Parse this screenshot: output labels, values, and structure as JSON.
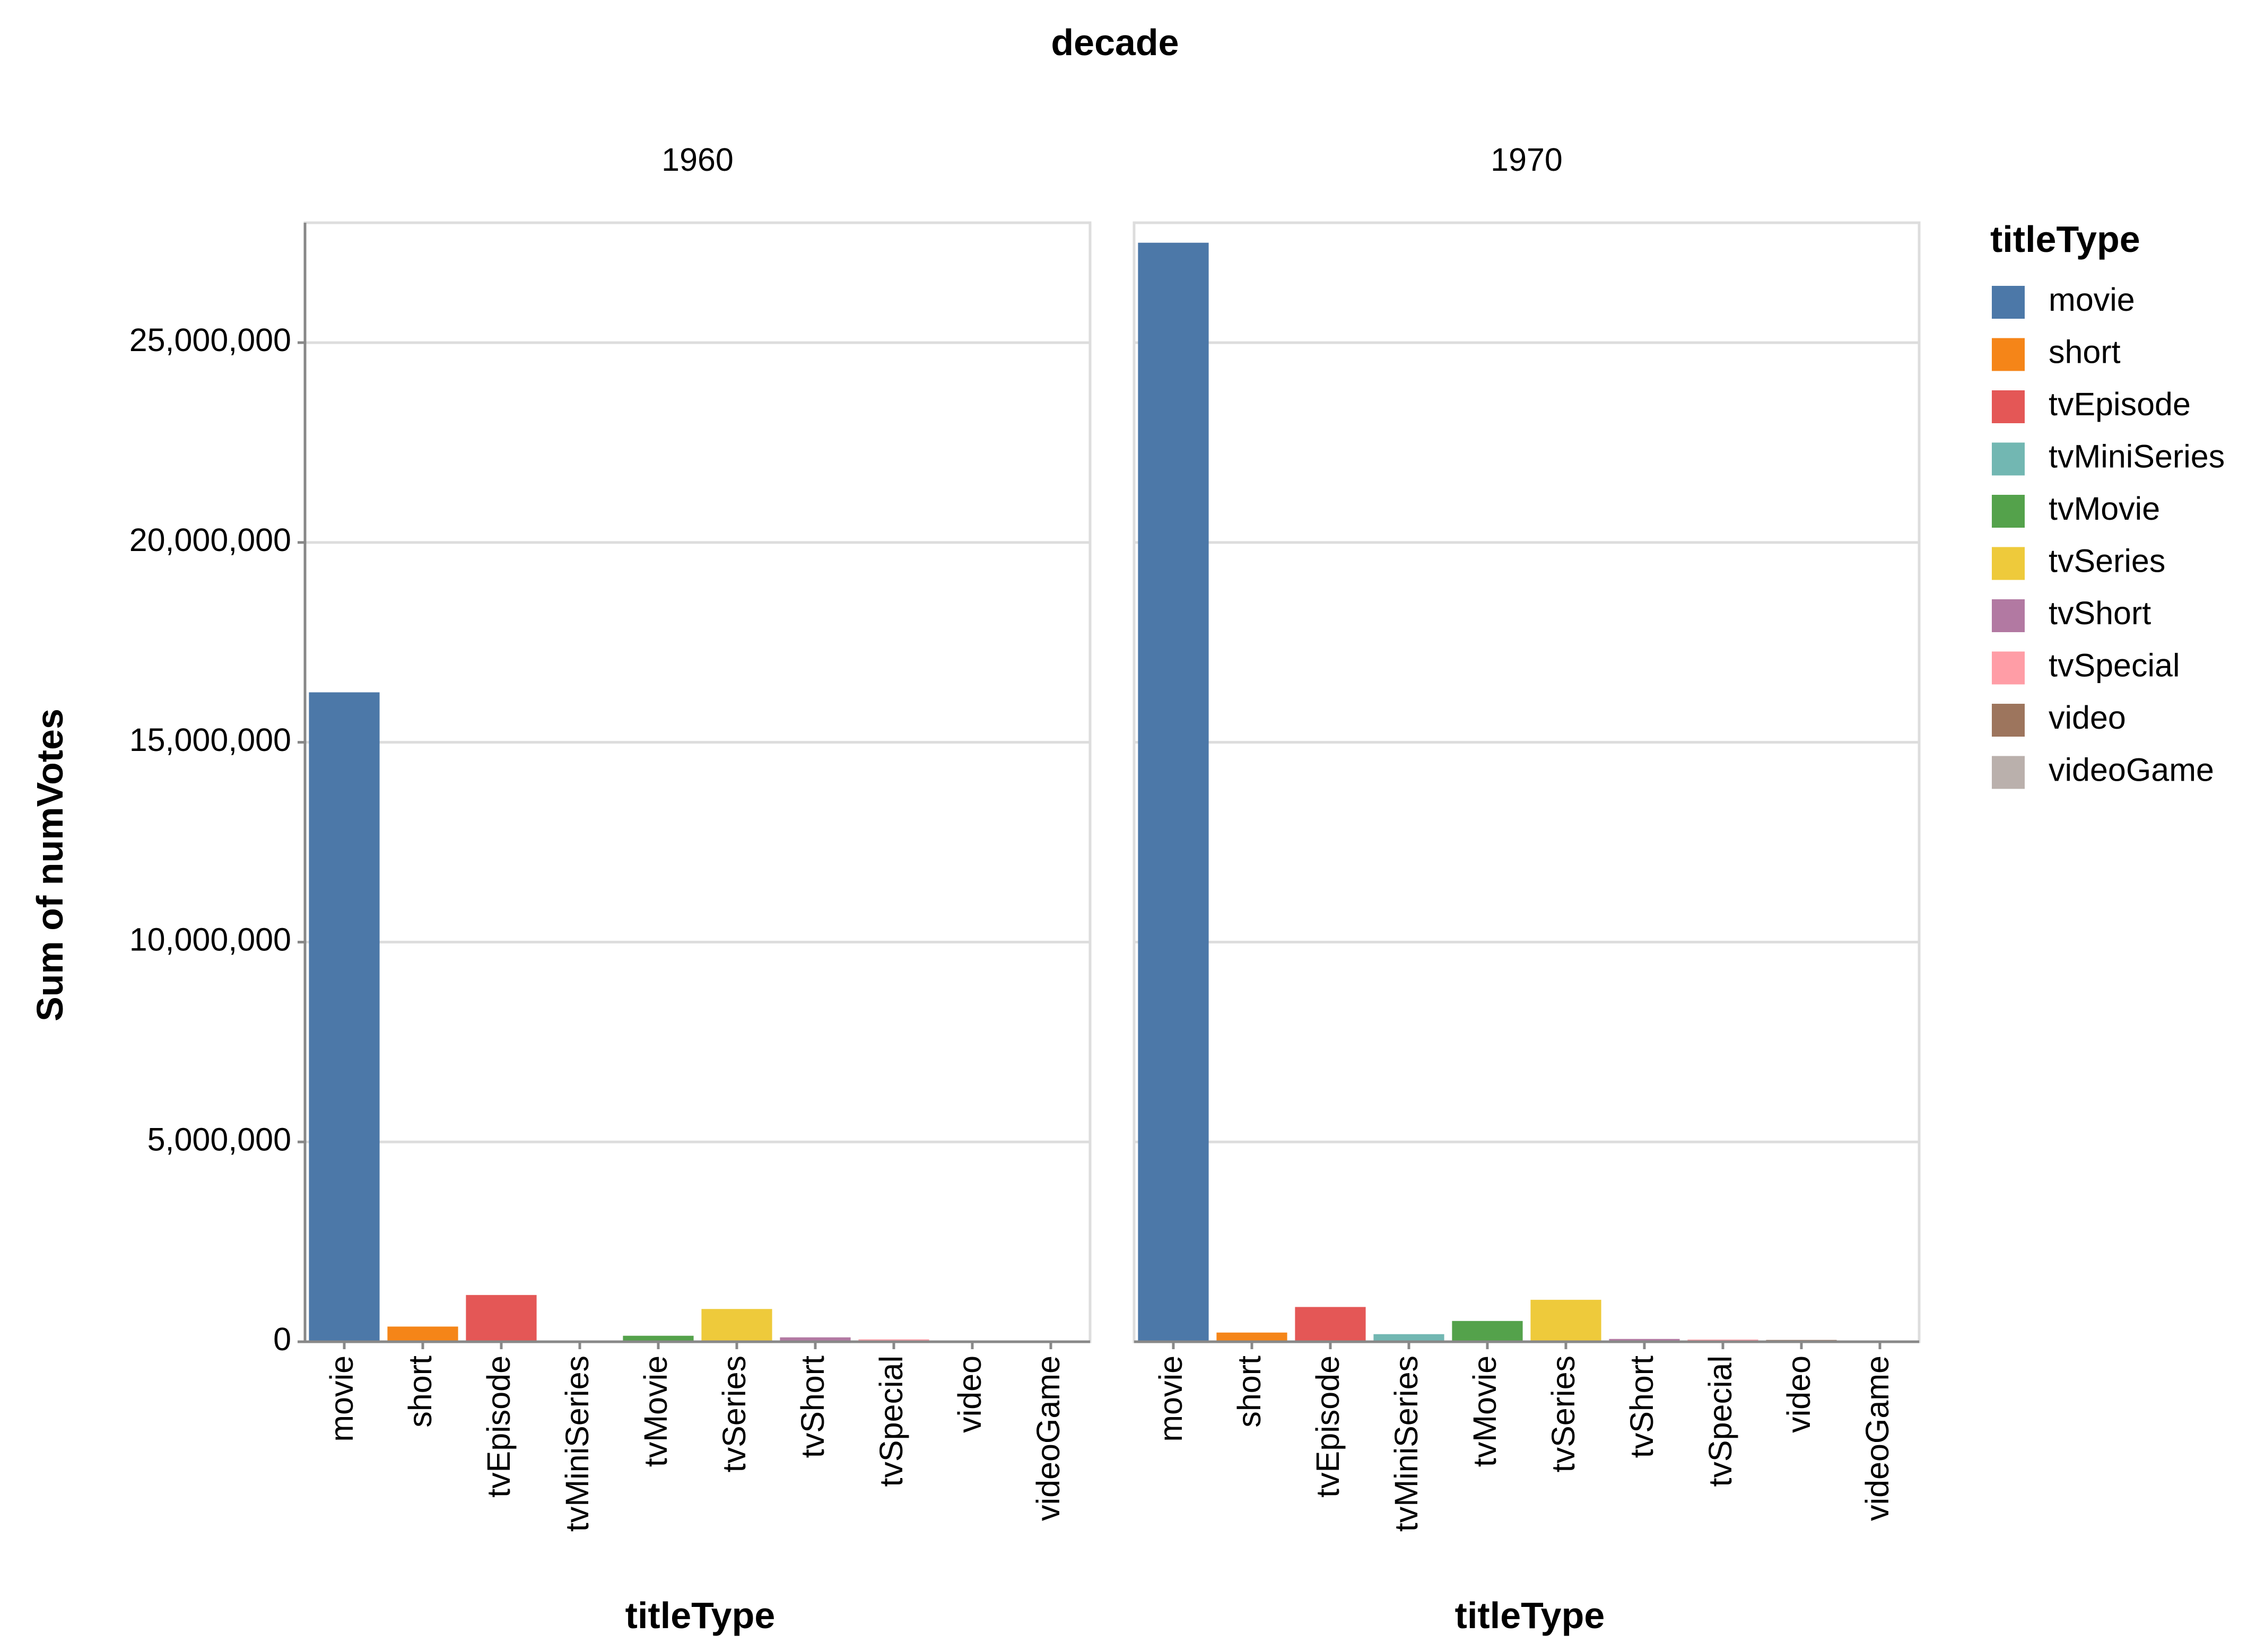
{
  "chart_data": {
    "type": "bar",
    "title": "",
    "facet_field": "decade",
    "xlabel": "titleType",
    "ylabel": "Sum of numVotes",
    "ylim": [
      0,
      28000000
    ],
    "y_ticks": [
      0,
      5000000,
      10000000,
      15000000,
      20000000,
      25000000
    ],
    "y_tick_labels": [
      "0",
      "5,000,000",
      "10,000,000",
      "15,000,000",
      "20,000,000",
      "25,000,000"
    ],
    "grid": true,
    "legend": {
      "title": "titleType",
      "placement": "right"
    },
    "categories": [
      "movie",
      "short",
      "tvEpisode",
      "tvMiniSeries",
      "tvMovie",
      "tvSeries",
      "tvShort",
      "tvSpecial",
      "video",
      "videoGame"
    ],
    "colors": [
      "#4c78a8",
      "#f58518",
      "#e45756",
      "#72b7b2",
      "#54a24b",
      "#eeca3b",
      "#b279a2",
      "#ff9da6",
      "#9d755d",
      "#bab0ac"
    ],
    "facets": [
      {
        "label": "1960",
        "values": [
          16250000,
          380000,
          1170000,
          30000,
          150000,
          820000,
          110000,
          60000,
          25000,
          3000
        ]
      },
      {
        "label": "1970",
        "values": [
          27500000,
          230000,
          870000,
          190000,
          520000,
          1050000,
          70000,
          55000,
          45000,
          5000
        ]
      }
    ]
  }
}
